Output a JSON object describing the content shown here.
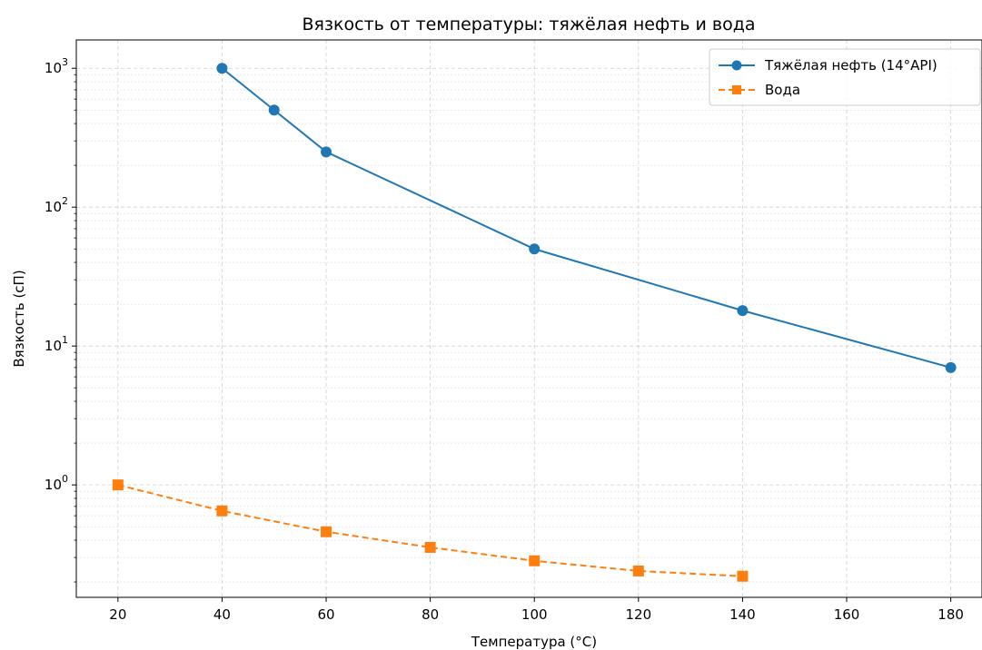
{
  "chart_data": {
    "type": "line",
    "title": "Вязкость от температуры: тяжёлая нефть и вода",
    "xlabel": "Температура (°C)",
    "ylabel": "Вязкость (сП)",
    "xlim": [
      12,
      186
    ],
    "ylim": [
      0.155,
      1600
    ],
    "yscale": "log",
    "x_ticks": [
      20,
      40,
      60,
      80,
      100,
      120,
      140,
      160,
      180
    ],
    "y_ticks": [
      {
        "value": 1,
        "base": "10",
        "exp": "0"
      },
      {
        "value": 10,
        "base": "10",
        "exp": "1"
      },
      {
        "value": 100,
        "base": "10",
        "exp": "2"
      },
      {
        "value": 1000,
        "base": "10",
        "exp": "3"
      }
    ],
    "grid": true,
    "legend_position": "top-right",
    "series": [
      {
        "name": "Тяжёлая нефть (14°API)",
        "color": "#1f77b4",
        "marker": "circle",
        "line_style": "solid",
        "x": [
          40,
          50,
          60,
          100,
          140,
          180
        ],
        "y": [
          1000,
          500,
          250,
          50,
          18,
          7
        ]
      },
      {
        "name": "Вода",
        "color": "#ff7f0e",
        "marker": "square",
        "line_style": "dashed",
        "x": [
          20,
          40,
          60,
          80,
          100,
          120,
          140
        ],
        "y": [
          1.0,
          0.65,
          0.46,
          0.355,
          0.284,
          0.24,
          0.22
        ]
      }
    ]
  }
}
